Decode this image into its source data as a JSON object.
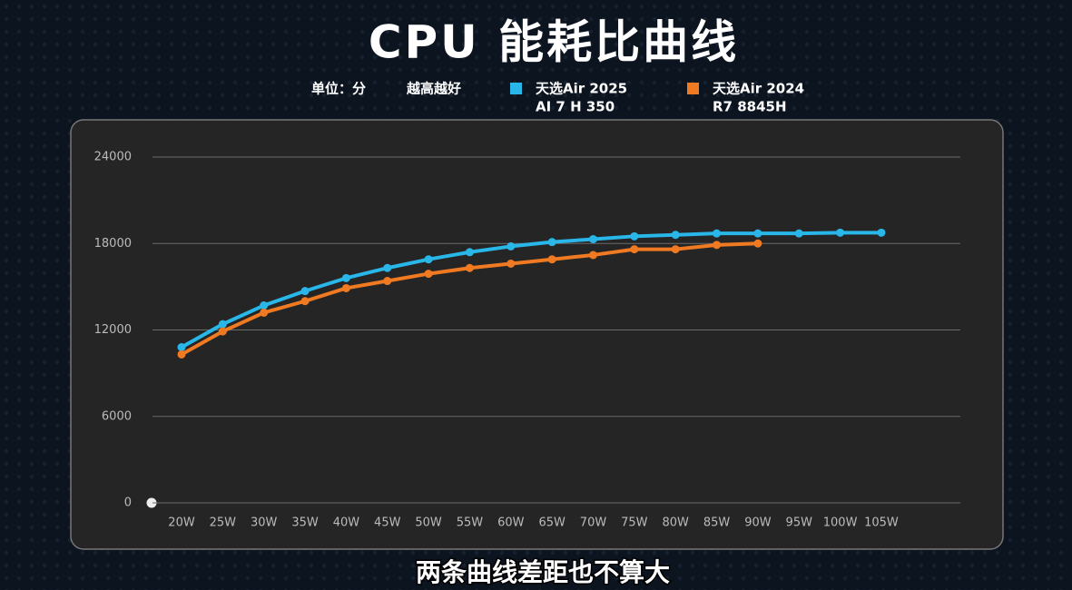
{
  "chart_data": {
    "type": "line",
    "title": "CPU 能耗比曲线",
    "unit": "单位：分",
    "note": "越高越好",
    "caption": "两条曲线差距也不算大",
    "categories": [
      "20W",
      "25W",
      "30W",
      "35W",
      "40W",
      "45W",
      "50W",
      "55W",
      "60W",
      "65W",
      "70W",
      "75W",
      "80W",
      "85W",
      "90W",
      "95W",
      "100W",
      "105W"
    ],
    "series": [
      {
        "name": "天选Air 2025",
        "model": "AI 7 H 350",
        "color": "#29b6e8",
        "values": [
          10800,
          12400,
          13700,
          14700,
          15600,
          16300,
          16900,
          17400,
          17800,
          18100,
          18300,
          18500,
          18600,
          18700,
          18700,
          18700,
          18750,
          18750
        ]
      },
      {
        "name": "天选Air 2024",
        "model": "R7 8845H",
        "color": "#f07a22",
        "values": [
          10300,
          11900,
          13200,
          14000,
          14900,
          15400,
          15900,
          16300,
          16600,
          16900,
          17200,
          17600,
          17600,
          17900,
          18000,
          null,
          null,
          null
        ]
      }
    ],
    "ylim": [
      0,
      24000
    ],
    "yticks": [
      0,
      6000,
      12000,
      18000,
      24000
    ],
    "grid": true
  }
}
